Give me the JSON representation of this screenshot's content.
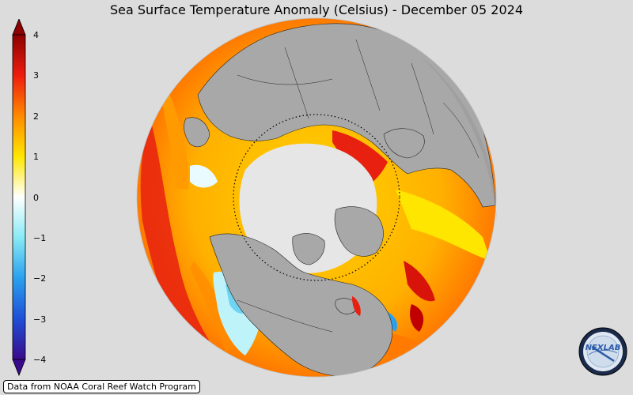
{
  "title": "Sea Surface Temperature Anomaly (Celsius) - December 05 2024",
  "colorbar": {
    "ticks": [
      "4",
      "3",
      "2",
      "1",
      "0",
      "−1",
      "−2",
      "−3",
      "−4"
    ],
    "range": [
      -4,
      4
    ],
    "colors": {
      "minus4": "#3a0a8c",
      "minus3": "#1f4fd6",
      "minus2": "#2aa0ee",
      "minus1": "#88eaf5",
      "zero": "#ffffff",
      "plus1": "#ffe600",
      "plus2": "#ff8a00",
      "plus3": "#ee1c0e",
      "plus4": "#8c0000"
    }
  },
  "map": {
    "projection": "orthographic",
    "center": "north-pole",
    "land_color": "#a8a8a8",
    "ice_color": "#e6e6e6",
    "arctic_circle": "dotted"
  },
  "credit": "Data from NOAA Coral Reef Watch Program",
  "logo": {
    "text": "NEXLAB",
    "icon": "nexlab-globe-logo-icon"
  }
}
